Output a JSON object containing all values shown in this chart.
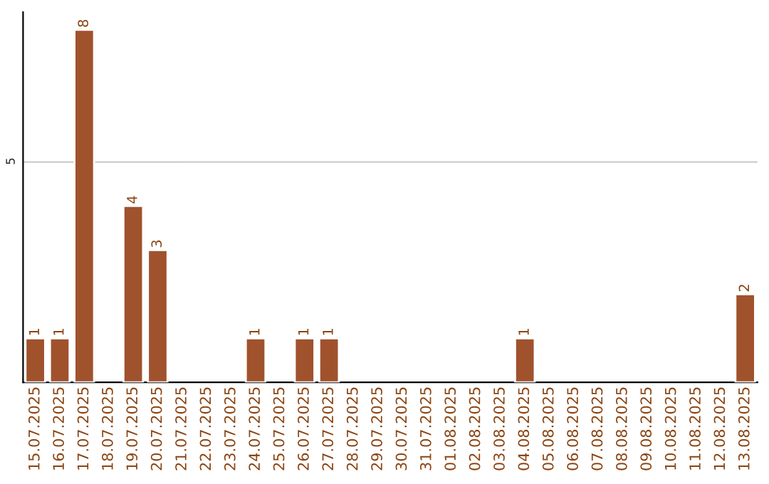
{
  "chart_data": {
    "type": "bar",
    "categories": [
      "15.07.2025",
      "16.07.2025",
      "17.07.2025",
      "18.07.2025",
      "19.07.2025",
      "20.07.2025",
      "21.07.2025",
      "22.07.2025",
      "23.07.2025",
      "24.07.2025",
      "25.07.2025",
      "26.07.2025",
      "27.07.2025",
      "28.07.2025",
      "29.07.2025",
      "30.07.2025",
      "31.07.2025",
      "01.08.2025",
      "02.08.2025",
      "03.08.2025",
      "04.08.2025",
      "05.08.2025",
      "06.08.2025",
      "07.08.2025",
      "08.08.2025",
      "09.08.2025",
      "10.08.2025",
      "11.08.2025",
      "12.08.2025",
      "13.08.2025"
    ],
    "values": [
      1,
      1,
      8,
      null,
      4,
      3,
      null,
      null,
      null,
      1,
      null,
      1,
      1,
      null,
      null,
      null,
      null,
      null,
      null,
      null,
      1,
      null,
      null,
      null,
      null,
      null,
      null,
      null,
      null,
      2
    ],
    "value_labels": [
      "1",
      "1",
      "8",
      null,
      "4",
      "3",
      null,
      null,
      null,
      "1",
      null,
      "1",
      "1",
      null,
      null,
      null,
      null,
      null,
      null,
      null,
      "1",
      null,
      null,
      null,
      null,
      null,
      null,
      null,
      null,
      "2"
    ],
    "color": "#a0522d",
    "ylim": [
      0,
      8.4
    ],
    "yticks": [
      5
    ],
    "grid": "y",
    "legend": false
  }
}
